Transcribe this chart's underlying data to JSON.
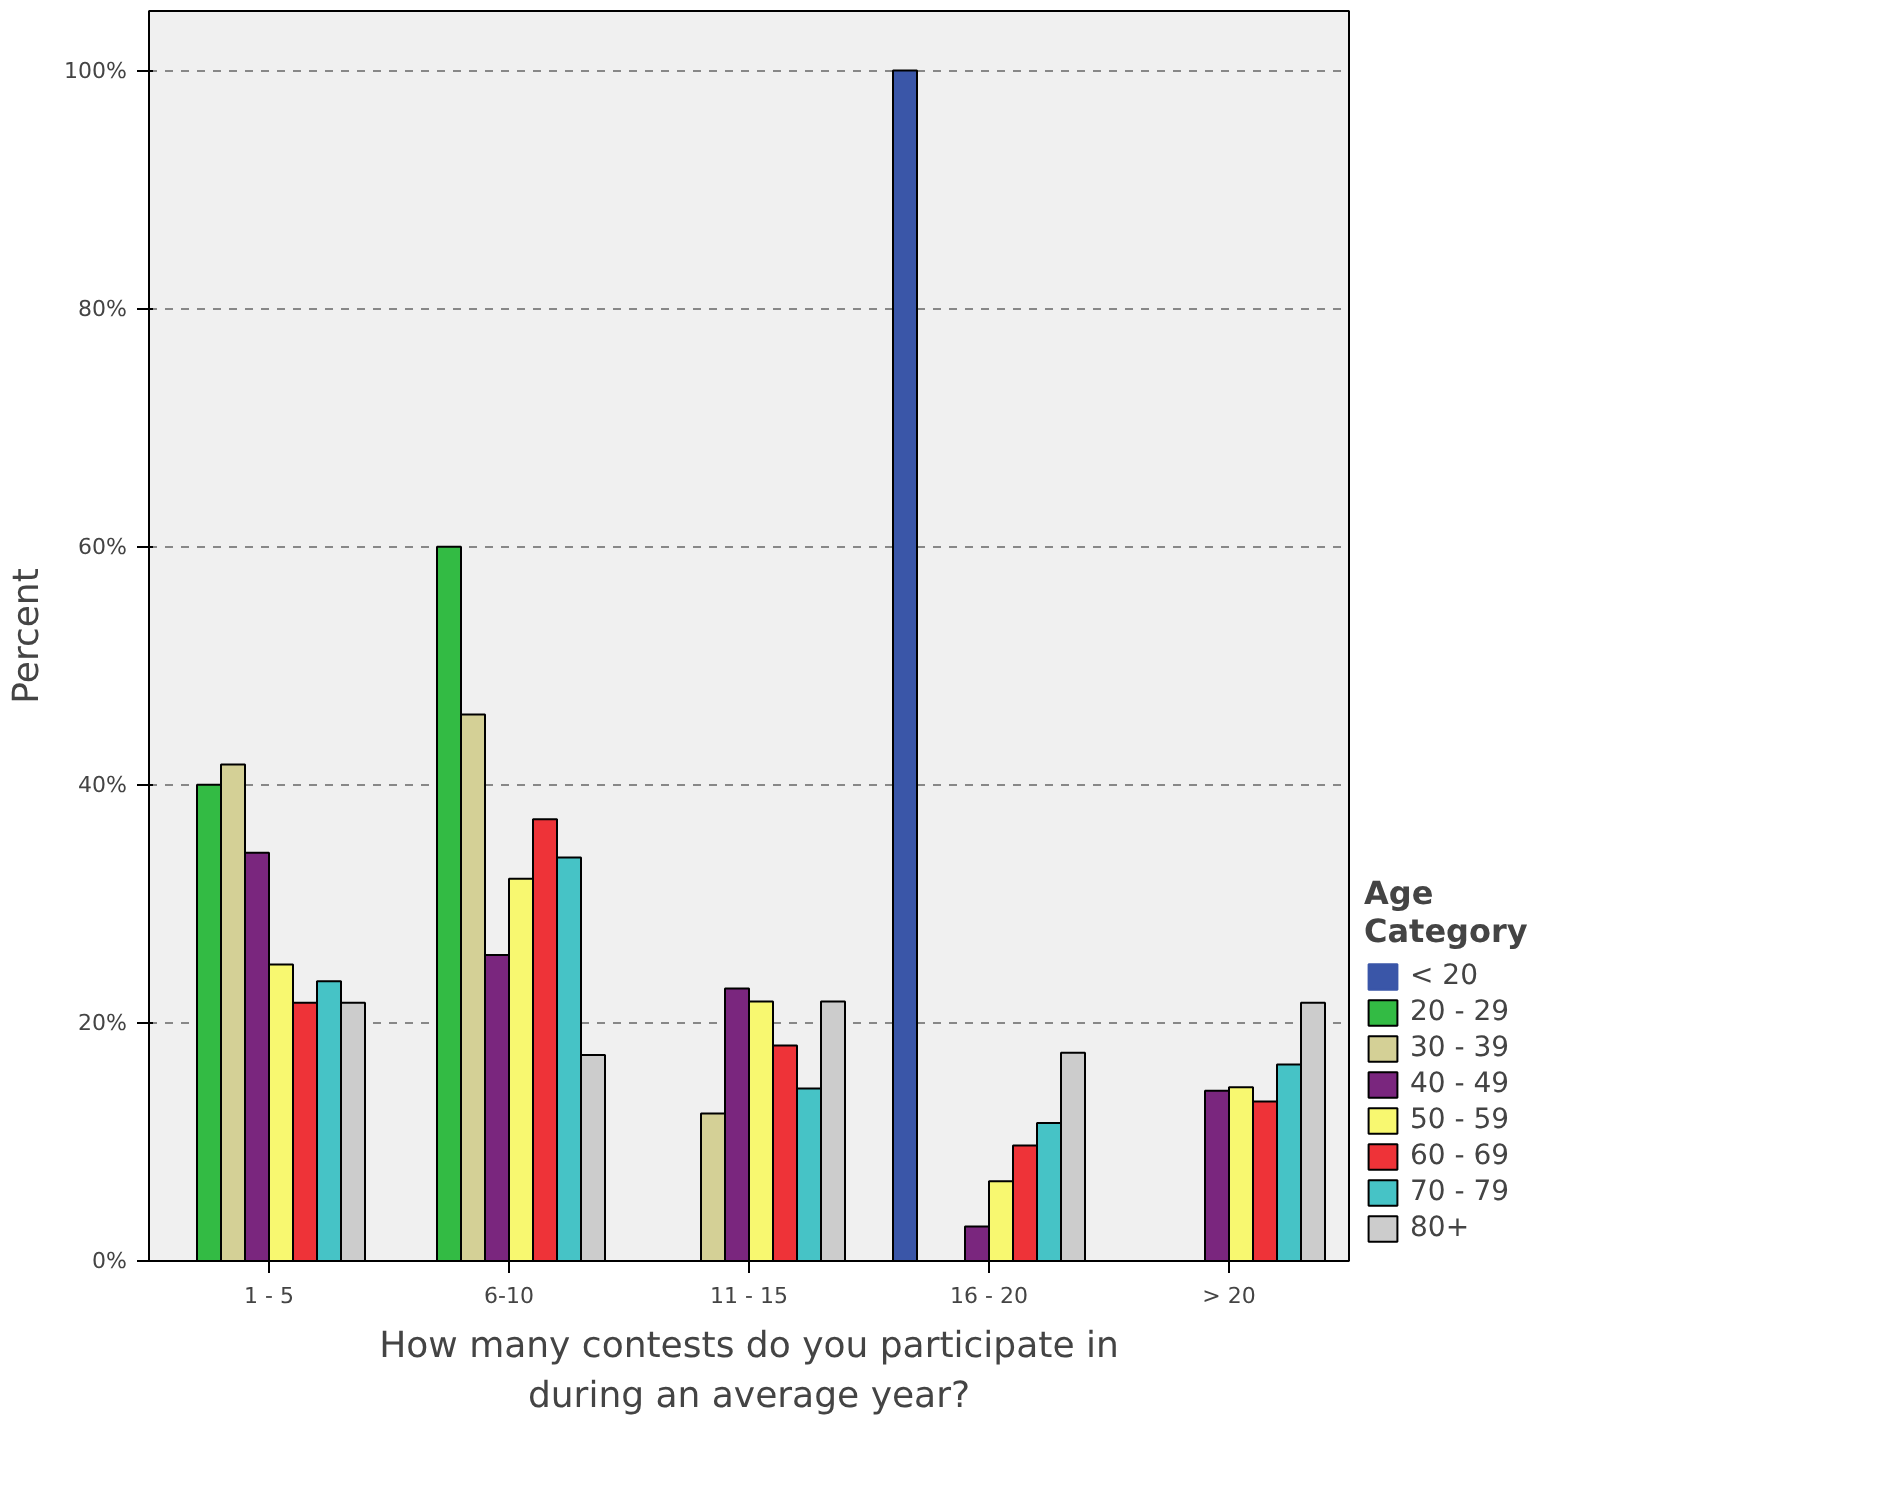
{
  "chart_data": {
    "type": "bar",
    "xlabel": "How many contests do you participate in\nduring an average year?",
    "ylabel": "Percent",
    "legend_title": "Age\nCategory",
    "categories": [
      "1 - 5",
      "6-10",
      "11 - 15",
      "16 - 20",
      "> 20"
    ],
    "series": [
      {
        "name": "< 20",
        "color": "#3a56a8",
        "values": [
          0,
          0,
          0,
          100,
          0
        ]
      },
      {
        "name": "20 - 29",
        "color": "#33bb44",
        "values": [
          40,
          60,
          0,
          0,
          0
        ]
      },
      {
        "name": "30 - 39",
        "color": "#d4d096",
        "values": [
          41.7,
          45.9,
          12.4,
          0,
          0
        ]
      },
      {
        "name": "40 - 49",
        "color": "#7a267e",
        "values": [
          34.3,
          25.7,
          22.9,
          2.9,
          14.3
        ]
      },
      {
        "name": "50 - 59",
        "color": "#f8f870",
        "values": [
          24.9,
          32.1,
          21.8,
          6.7,
          14.6
        ]
      },
      {
        "name": "60 - 69",
        "color": "#ee3338",
        "values": [
          21.7,
          37.1,
          18.1,
          9.7,
          13.4
        ]
      },
      {
        "name": "70 - 79",
        "color": "#46c3c6",
        "values": [
          23.5,
          33.9,
          14.5,
          11.6,
          16.5
        ]
      },
      {
        "name": "80+",
        "color": "#cccccc",
        "values": [
          21.7,
          17.3,
          21.8,
          17.5,
          21.7
        ]
      }
    ],
    "ylim": [
      0,
      105
    ],
    "yticks": [
      {
        "value": 0,
        "label": "0%"
      },
      {
        "value": 20,
        "label": "20%"
      },
      {
        "value": 40,
        "label": "40%"
      },
      {
        "value": 60,
        "label": "60%"
      },
      {
        "value": 80,
        "label": "80%"
      },
      {
        "value": 100,
        "label": "100%"
      }
    ],
    "grid": "y",
    "legend": "right"
  }
}
